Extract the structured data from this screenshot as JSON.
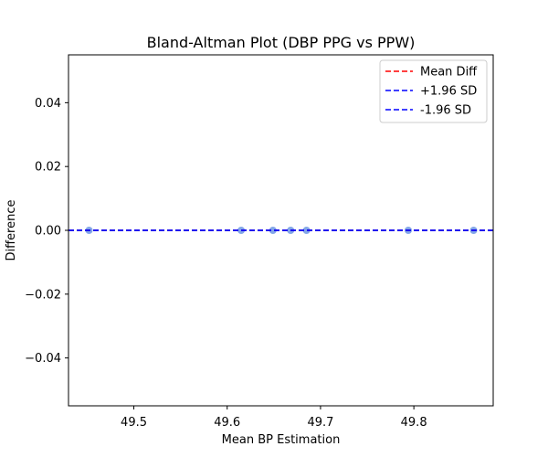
{
  "chart_data": {
    "type": "scatter",
    "title": "Bland-Altman Plot (DBP PPG vs PPW)",
    "xlabel": "Mean BP Estimation",
    "ylabel": "Difference",
    "xlim": [
      49.43,
      49.885
    ],
    "ylim": [
      -0.055,
      0.055
    ],
    "x_ticks": [
      49.5,
      49.6,
      49.7,
      49.8
    ],
    "x_tick_labels": [
      "49.5",
      "49.6",
      "49.7",
      "49.8"
    ],
    "y_ticks": [
      0.04,
      0.02,
      0.0,
      -0.02,
      -0.04
    ],
    "y_tick_labels": [
      "0.04",
      "0.02",
      "0.00",
      "−0.02",
      "−0.04"
    ],
    "grid": false,
    "points": {
      "x": [
        49.452,
        49.615,
        49.649,
        49.668,
        49.685,
        49.794,
        49.864
      ],
      "y": [
        0,
        0,
        0,
        0,
        0,
        0,
        0
      ],
      "color": "#1f5fd6"
    },
    "lines": [
      {
        "name": "Mean Diff",
        "y": 0.0,
        "color": "#ff0000",
        "style": "dashed"
      },
      {
        "name": "+1.96 SD",
        "y": 0.0,
        "color": "#0000ff",
        "style": "dashed"
      },
      {
        "name": "-1.96 SD",
        "y": 0.0,
        "color": "#0000ff",
        "style": "dashed"
      }
    ],
    "legend": {
      "position": "top-right",
      "entries": [
        "Mean Diff",
        "+1.96 SD",
        "-1.96 SD"
      ]
    }
  }
}
